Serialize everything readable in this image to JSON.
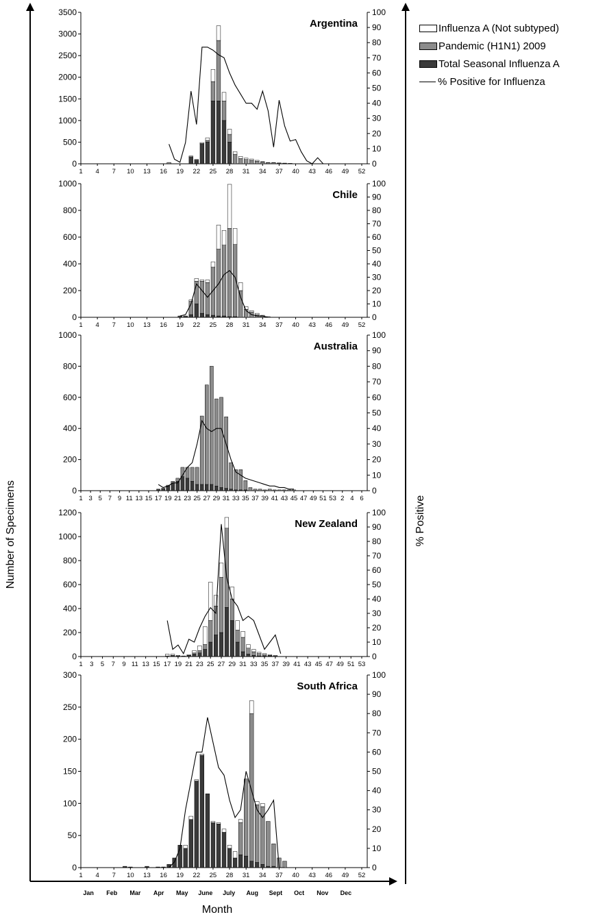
{
  "legend": {
    "items": [
      {
        "label": "Influenza A (Not subtyped)",
        "color": "#ffffff",
        "kind": "bar"
      },
      {
        "label": "Pandemic (H1N1) 2009",
        "color": "#8c8c8c",
        "kind": "bar"
      },
      {
        "label": "Total Seasonal Influenza A",
        "color": "#3a3a3a",
        "kind": "bar"
      },
      {
        "label": "% Positive for Influenza",
        "color": "#000000",
        "kind": "line"
      }
    ]
  },
  "axes": {
    "y_left_label": "Number of Specimens",
    "y_right_label": "% Positive",
    "x_label": "Month",
    "months": [
      "Jan",
      "Feb",
      "Mar",
      "Apr",
      "May",
      "June",
      "July",
      "Aug",
      "Sept",
      "Oct",
      "Nov",
      "Dec"
    ]
  },
  "chart_data": [
    {
      "type": "bar",
      "title": "Argentina",
      "stacked": true,
      "ylim": [
        0,
        3500
      ],
      "y_ticks": [
        0,
        500,
        1000,
        1500,
        2000,
        2500,
        3000,
        3500
      ],
      "y2lim": [
        0,
        100
      ],
      "y2_ticks": [
        0,
        10,
        20,
        30,
        40,
        50,
        60,
        70,
        80,
        90,
        100
      ],
      "x_ticks": [
        "1",
        "4",
        "7",
        "10",
        "13",
        "16",
        "19",
        "22",
        "25",
        "28",
        "31",
        "34",
        "37",
        "40",
        "43",
        "46",
        "49",
        "52"
      ],
      "x": [
        17,
        18,
        19,
        20,
        21,
        22,
        23,
        24,
        25,
        26,
        27,
        28,
        29,
        30,
        31,
        32,
        33,
        34,
        35,
        36,
        37,
        38,
        39,
        40,
        41,
        42,
        43,
        44,
        45,
        46
      ],
      "series": [
        {
          "name": "Total Seasonal Influenza A",
          "values": [
            0,
            0,
            0,
            0,
            150,
            80,
            450,
            500,
            1450,
            1450,
            1000,
            500,
            0,
            0,
            0,
            0,
            0,
            0,
            0,
            0,
            0,
            0,
            0,
            0,
            0,
            0,
            0,
            0,
            0,
            0
          ]
        },
        {
          "name": "Pandemic (H1N1) 2009",
          "values": [
            30,
            0,
            0,
            0,
            30,
            20,
            20,
            40,
            450,
            1400,
            450,
            180,
            220,
            120,
            100,
            80,
            60,
            40,
            20,
            20,
            15,
            10,
            5,
            0,
            0,
            0,
            0,
            0,
            0,
            0
          ]
        },
        {
          "name": "Influenza A (Not subtyped)",
          "values": [
            0,
            0,
            0,
            0,
            0,
            0,
            20,
            60,
            280,
            340,
            200,
            120,
            60,
            50,
            30,
            30,
            20,
            10,
            10,
            10,
            5,
            5,
            5,
            0,
            0,
            0,
            0,
            0,
            0,
            0
          ]
        }
      ],
      "line": {
        "name": "% Positive for Influenza",
        "values": [
          13,
          3,
          1,
          14,
          48,
          26,
          77,
          77,
          75,
          72,
          70,
          60,
          52,
          46,
          40,
          40,
          36,
          48,
          35,
          11,
          42,
          25,
          15,
          16,
          8,
          2,
          0,
          4,
          0,
          0
        ]
      }
    },
    {
      "type": "bar",
      "title": "Chile",
      "stacked": true,
      "ylim": [
        0,
        1000
      ],
      "y_ticks": [
        0,
        200,
        400,
        600,
        800,
        1000
      ],
      "y2lim": [
        0,
        100
      ],
      "y2_ticks": [
        0,
        10,
        20,
        30,
        40,
        50,
        60,
        70,
        80,
        90,
        100
      ],
      "x_ticks": [
        "1",
        "4",
        "7",
        "10",
        "13",
        "16",
        "19",
        "22",
        "25",
        "28",
        "31",
        "34",
        "37",
        "40",
        "43",
        "46",
        "49",
        "52"
      ],
      "x": [
        19,
        20,
        21,
        22,
        23,
        24,
        25,
        26,
        27,
        28,
        29,
        30,
        31,
        32,
        33,
        34,
        35
      ],
      "series": [
        {
          "name": "Total Seasonal Influenza A",
          "values": [
            5,
            5,
            20,
            100,
            30,
            20,
            15,
            10,
            10,
            5,
            5,
            0,
            0,
            0,
            0,
            0,
            0
          ]
        },
        {
          "name": "Pandemic (H1N1) 2009",
          "values": [
            5,
            5,
            100,
            170,
            240,
            240,
            360,
            500,
            530,
            660,
            540,
            200,
            60,
            40,
            20,
            10,
            5
          ]
        },
        {
          "name": "Influenza A (Not subtyped)",
          "values": [
            0,
            0,
            10,
            20,
            10,
            20,
            40,
            180,
            110,
            330,
            120,
            60,
            20,
            10,
            10,
            5,
            0
          ]
        }
      ],
      "line": {
        "name": "% Positive for Influenza",
        "values": [
          1,
          2,
          10,
          25,
          20,
          15,
          20,
          25,
          32,
          35,
          30,
          15,
          5,
          2,
          1,
          1,
          0
        ]
      }
    },
    {
      "type": "bar",
      "title": "Australia",
      "stacked": true,
      "ylim": [
        0,
        1000
      ],
      "y_ticks": [
        0,
        200,
        400,
        600,
        800,
        1000
      ],
      "y2lim": [
        0,
        100
      ],
      "y2_ticks": [
        0,
        10,
        20,
        30,
        40,
        50,
        60,
        70,
        80,
        90,
        100
      ],
      "x_ticks": [
        "1",
        "3",
        "5",
        "7",
        "9",
        "11",
        "13",
        "15",
        "17",
        "19",
        "21",
        "23",
        "25",
        "27",
        "29",
        "31",
        "33",
        "35",
        "37",
        "39",
        "41",
        "43",
        "45",
        "47",
        "49",
        "51",
        "53",
        "2",
        "4",
        "6"
      ],
      "x": [
        17,
        18,
        19,
        20,
        21,
        22,
        23,
        24,
        25,
        26,
        27,
        28,
        29,
        30,
        31,
        32,
        33,
        34,
        35,
        36,
        37,
        38,
        39,
        40,
        41,
        42,
        43,
        44,
        45
      ],
      "series": [
        {
          "name": "Total Seasonal Influenza A",
          "values": [
            10,
            15,
            30,
            50,
            60,
            90,
            80,
            60,
            40,
            40,
            40,
            40,
            30,
            20,
            15,
            10,
            5,
            5,
            5,
            0,
            0,
            0,
            0,
            0,
            0,
            0,
            0,
            0,
            0
          ]
        },
        {
          "name": "Pandemic (H1N1) 2009",
          "values": [
            0,
            0,
            5,
            10,
            20,
            60,
            70,
            90,
            110,
            440,
            640,
            760,
            560,
            580,
            460,
            170,
            130,
            130,
            60,
            20,
            10,
            10,
            5,
            10,
            5,
            5,
            5,
            5,
            5
          ]
        },
        {
          "name": "Influenza A (Not subtyped)",
          "values": [
            0,
            0,
            0,
            0,
            0,
            0,
            0,
            0,
            0,
            0,
            0,
            0,
            0,
            0,
            0,
            0,
            0,
            0,
            0,
            0,
            0,
            0,
            0,
            0,
            0,
            0,
            0,
            0,
            0
          ]
        }
      ],
      "line": {
        "name": "% Positive for Influenza",
        "values": [
          4,
          2,
          3,
          5,
          5,
          10,
          15,
          18,
          30,
          45,
          40,
          38,
          40,
          40,
          30,
          20,
          12,
          10,
          8,
          7,
          6,
          5,
          4,
          3,
          3,
          2,
          2,
          1,
          1
        ]
      }
    },
    {
      "type": "bar",
      "title": "New Zealand",
      "stacked": true,
      "ylim": [
        0,
        1200
      ],
      "y_ticks": [
        0,
        200,
        400,
        600,
        800,
        1000,
        1200
      ],
      "y2lim": [
        0,
        100
      ],
      "y2_ticks": [
        0,
        10,
        20,
        30,
        40,
        50,
        60,
        70,
        80,
        90,
        100
      ],
      "x_ticks": [
        "1",
        "3",
        "5",
        "7",
        "9",
        "11",
        "13",
        "15",
        "17",
        "19",
        "21",
        "23",
        "25",
        "27",
        "29",
        "31",
        "33",
        "35",
        "37",
        "39",
        "41",
        "43",
        "45",
        "47",
        "49",
        "51",
        "53"
      ],
      "x": [
        17,
        18,
        19,
        20,
        21,
        22,
        23,
        24,
        25,
        26,
        27,
        28,
        29,
        30,
        31,
        32,
        33,
        34,
        35,
        36,
        37,
        38
      ],
      "series": [
        {
          "name": "Total Seasonal Influenza A",
          "values": [
            5,
            10,
            5,
            5,
            10,
            20,
            30,
            60,
            120,
            180,
            200,
            410,
            300,
            120,
            40,
            20,
            10,
            5,
            5,
            5,
            0,
            0
          ]
        },
        {
          "name": "Pandemic (H1N1) 2009",
          "values": [
            0,
            0,
            0,
            0,
            0,
            10,
            20,
            40,
            180,
            240,
            460,
            660,
            180,
            100,
            120,
            50,
            30,
            20,
            10,
            5,
            5,
            0
          ]
        },
        {
          "name": "Influenza A (Not subtyped)",
          "values": [
            15,
            10,
            5,
            0,
            5,
            20,
            40,
            150,
            320,
            90,
            120,
            90,
            100,
            80,
            50,
            30,
            20,
            10,
            10,
            5,
            5,
            0
          ]
        }
      ],
      "line": {
        "name": "% Positive for Influenza",
        "values": [
          25,
          5,
          8,
          2,
          12,
          10,
          20,
          28,
          34,
          30,
          92,
          55,
          40,
          35,
          25,
          28,
          25,
          15,
          5,
          10,
          15,
          2
        ]
      }
    },
    {
      "type": "bar",
      "title": "South Africa",
      "stacked": true,
      "ylim": [
        0,
        300
      ],
      "y_ticks": [
        0,
        50,
        100,
        150,
        200,
        250,
        300
      ],
      "y2lim": [
        0,
        100
      ],
      "y2_ticks": [
        0,
        10,
        20,
        30,
        40,
        50,
        60,
        70,
        80,
        90,
        100
      ],
      "x_ticks": [
        "1",
        "4",
        "7",
        "10",
        "13",
        "16",
        "19",
        "22",
        "25",
        "28",
        "31",
        "34",
        "37",
        "40",
        "43",
        "46",
        "49",
        "52"
      ],
      "x": [
        9,
        10,
        13,
        15,
        16,
        17,
        18,
        19,
        20,
        21,
        22,
        23,
        24,
        25,
        26,
        27,
        28,
        29,
        30,
        31,
        32,
        33,
        34,
        35,
        36,
        37,
        38
      ],
      "series": [
        {
          "name": "Total Seasonal Influenza A",
          "values": [
            2,
            1,
            2,
            1,
            1,
            5,
            15,
            35,
            30,
            75,
            135,
            175,
            115,
            70,
            68,
            55,
            30,
            15,
            20,
            18,
            10,
            8,
            5,
            2,
            2,
            0,
            0
          ]
        },
        {
          "name": "Pandemic (H1N1) 2009",
          "values": [
            0,
            0,
            0,
            0,
            0,
            0,
            0,
            0,
            0,
            0,
            0,
            0,
            0,
            0,
            0,
            0,
            0,
            0,
            50,
            120,
            230,
            90,
            90,
            70,
            35,
            15,
            10
          ]
        },
        {
          "name": "Influenza A (Not subtyped)",
          "values": [
            0,
            0,
            0,
            0,
            0,
            0,
            0,
            0,
            5,
            5,
            2,
            2,
            0,
            2,
            2,
            5,
            5,
            10,
            5,
            0,
            20,
            5,
            5,
            0,
            0,
            0,
            0
          ]
        }
      ],
      "line": {
        "name": "% Positive for Influenza",
        "values": [
          0,
          0,
          0,
          0,
          0,
          0,
          3,
          10,
          30,
          45,
          60,
          60,
          78,
          65,
          52,
          48,
          35,
          26,
          30,
          50,
          40,
          30,
          26,
          30,
          35,
          0,
          0
        ]
      }
    }
  ]
}
